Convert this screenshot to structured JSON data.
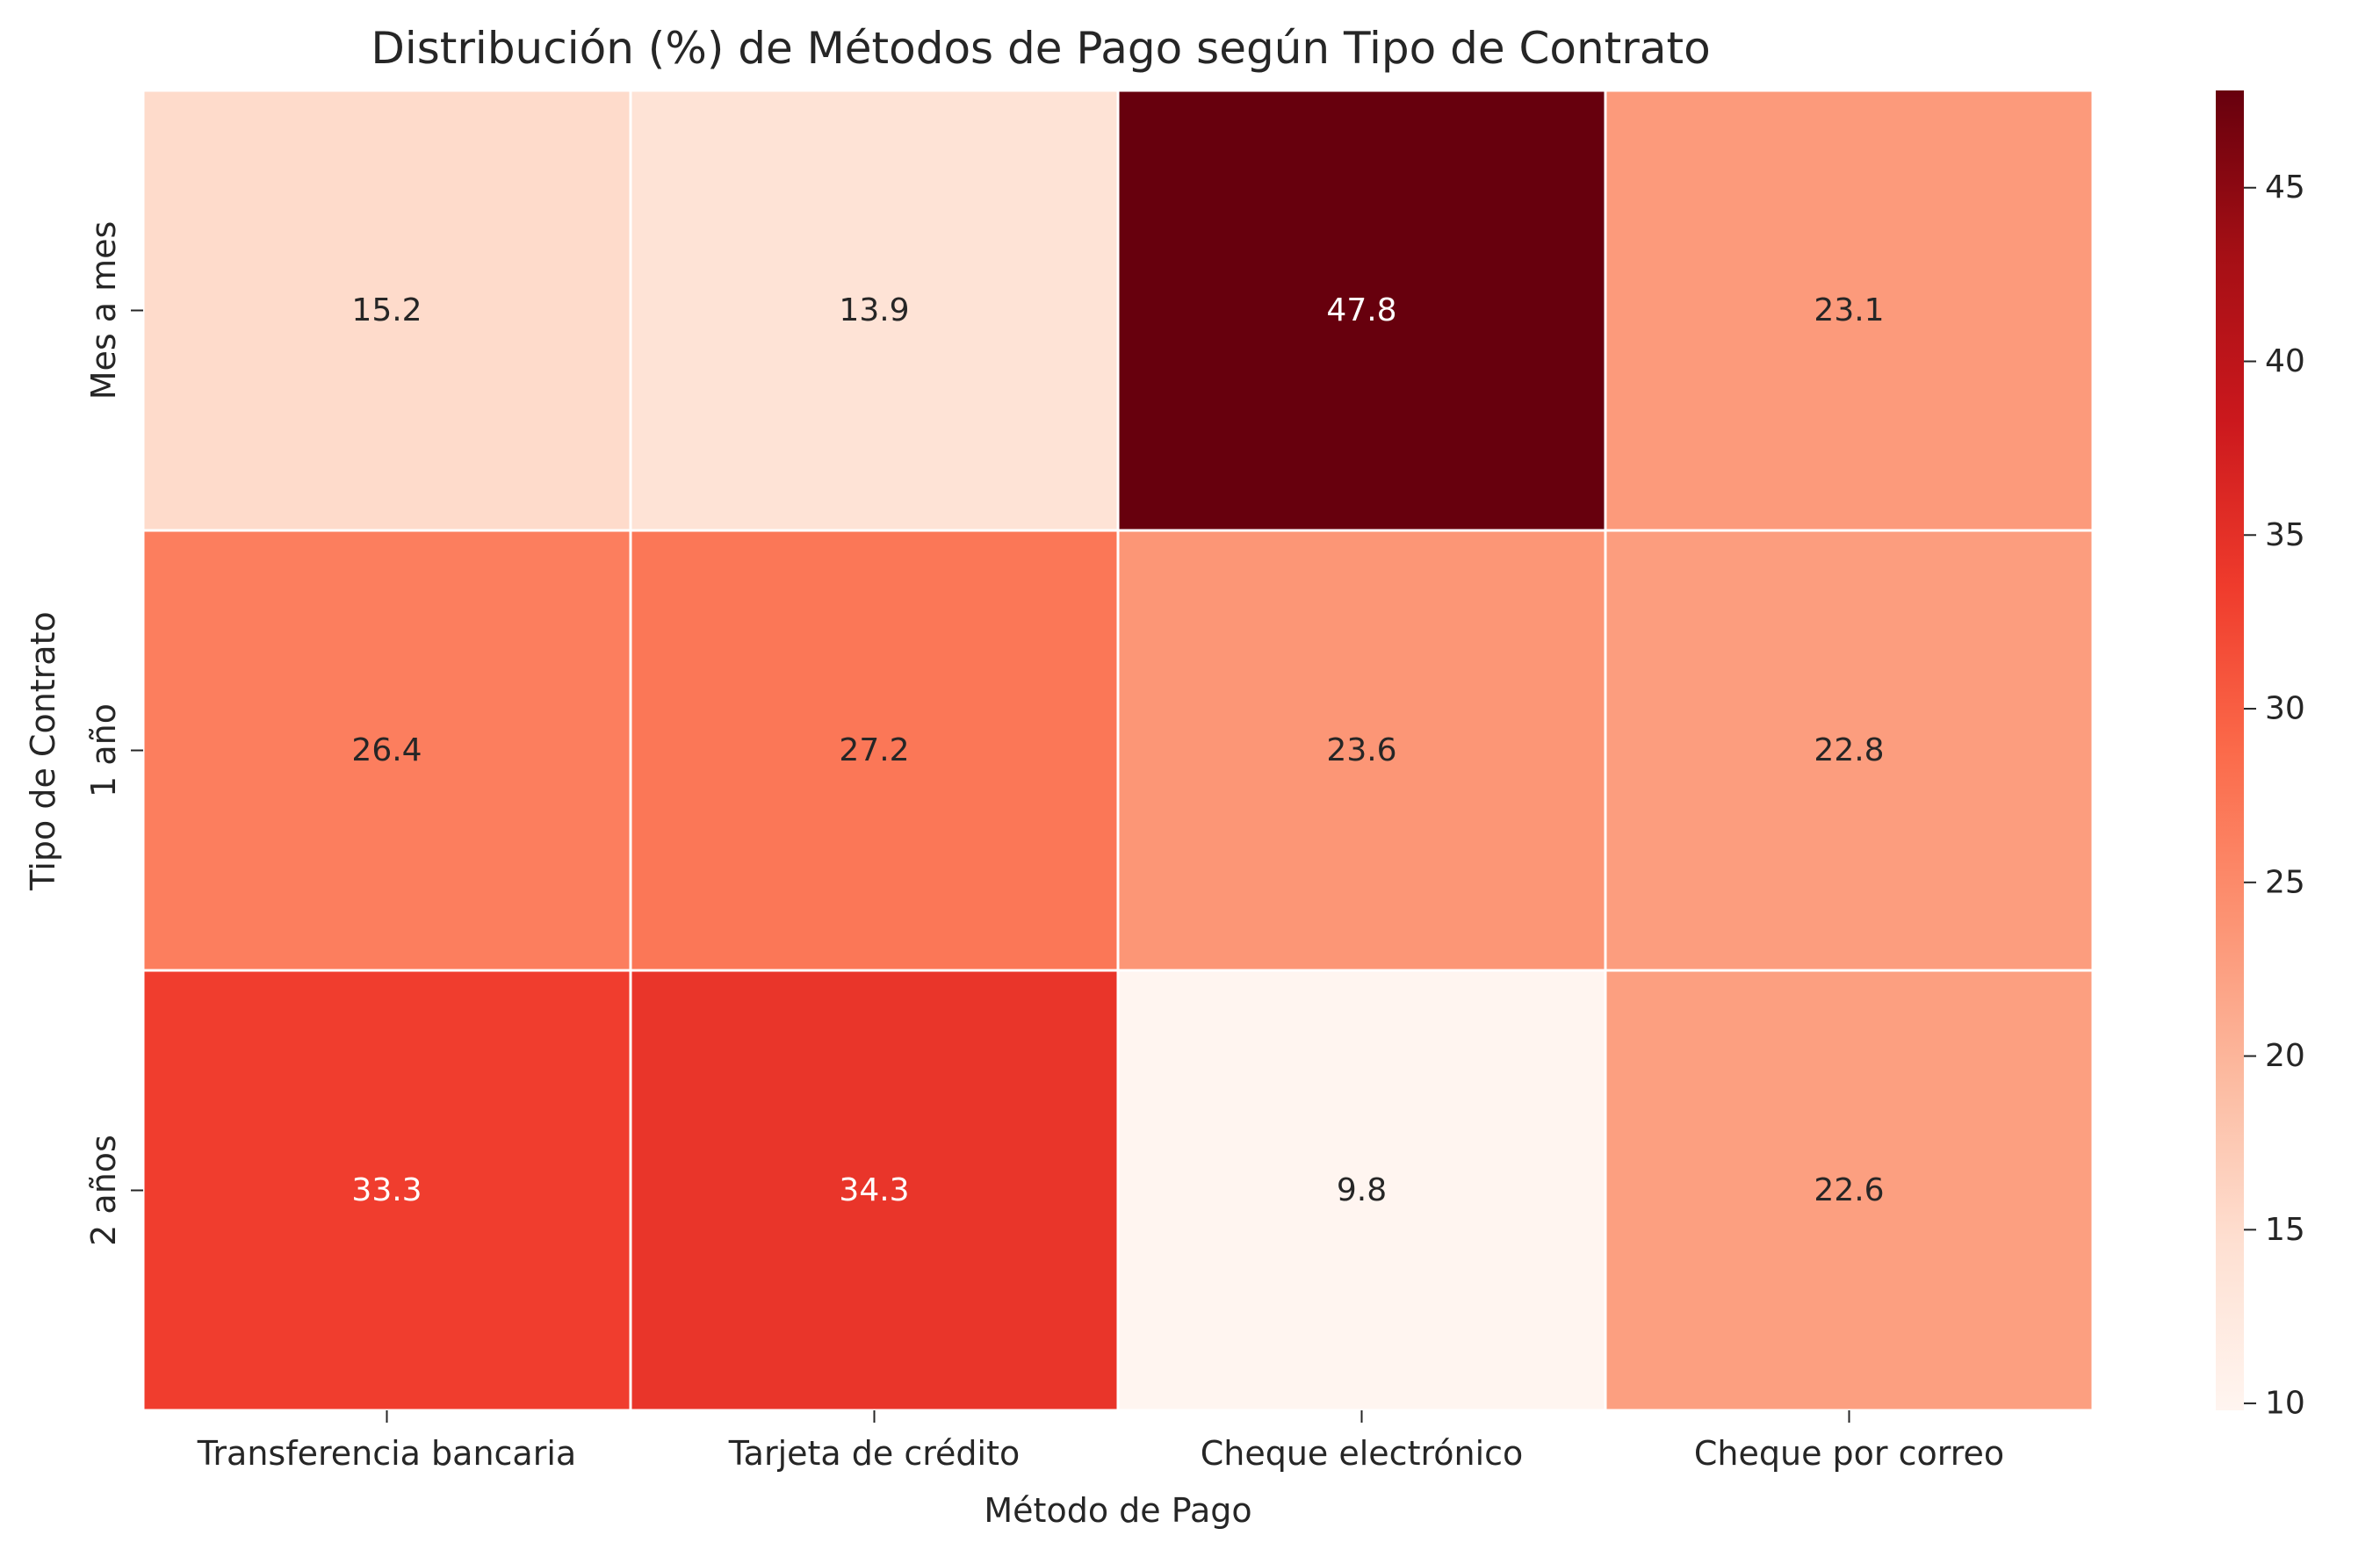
{
  "chart_data": {
    "type": "heatmap",
    "title": "Distribución (%) de Métodos de Pago según Tipo de Contrato",
    "xlabel": "Método de Pago",
    "ylabel": "Tipo de Contrato",
    "x_categories": [
      "Transferencia bancaria",
      "Tarjeta de crédito",
      "Cheque electrónico",
      "Cheque por correo"
    ],
    "y_categories": [
      "Mes a mes",
      "1 año",
      "2 años"
    ],
    "values": [
      [
        15.2,
        13.9,
        47.8,
        23.1
      ],
      [
        26.4,
        27.2,
        23.6,
        22.8
      ],
      [
        33.3,
        34.3,
        9.8,
        22.6
      ]
    ],
    "annotation_format": "0.1f",
    "colormap": "Reds",
    "colorbar": {
      "vmin": 9.8,
      "vmax": 47.8,
      "ticks": [
        10,
        15,
        20,
        25,
        30,
        35,
        40,
        45
      ]
    },
    "cell_border_color": "#ffffff",
    "annotation_light_color": "#ffffff",
    "annotation_dark_color": "#262626"
  }
}
